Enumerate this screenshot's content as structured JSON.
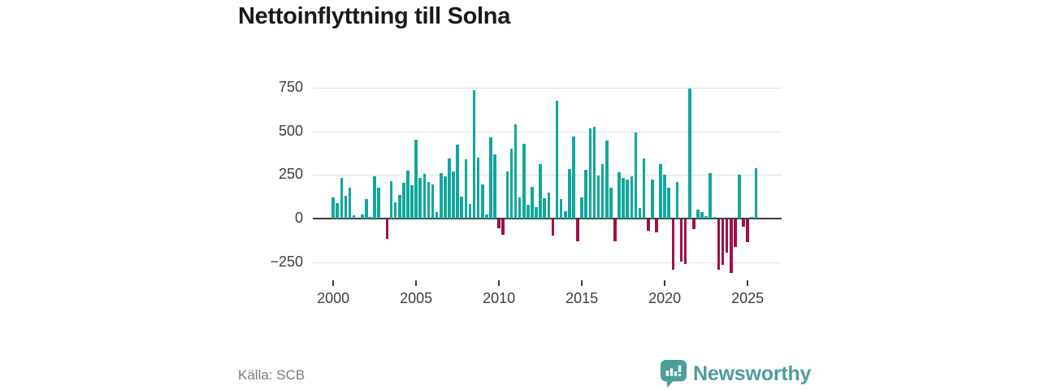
{
  "header": {
    "title": "Nettoinflyttning till Solna"
  },
  "footer": {
    "source": "Källa: SCB",
    "brand": "Newsworthy"
  },
  "colors": {
    "positive_bar": "#12a79d",
    "negative_bar": "#a1104b",
    "gridline": "#e0e0e0",
    "zero_axis": "#3b3b3b",
    "tick_text": "#3e3e3e",
    "title_text": "#1a1a1a",
    "source_text": "#7b7b84",
    "brand_teal": "#4b9e98"
  },
  "chart_data": {
    "type": "bar",
    "title": "Nettoinflyttning till Solna",
    "xlabel": "",
    "ylabel": "",
    "x_unit": "quarter",
    "start": "2000-Q1",
    "end": "2025-Q3",
    "grid": true,
    "legend": false,
    "ylim": [
      -330,
      800
    ],
    "y_ticks": [
      750,
      500,
      250,
      0,
      -250
    ],
    "y_tick_labels": [
      "750",
      "500",
      "250",
      "0",
      "−250"
    ],
    "x_tick_years": [
      2000,
      2005,
      2010,
      2015,
      2020,
      2025
    ],
    "x_tick_labels": [
      "2000",
      "2005",
      "2010",
      "2015",
      "2020",
      "2025"
    ],
    "series": [
      {
        "year": 2000,
        "q": [
          120,
          90,
          235,
          130
        ]
      },
      {
        "year": 2001,
        "q": [
          175,
          20,
          0,
          25
        ]
      },
      {
        "year": 2002,
        "q": [
          110,
          10,
          240,
          175
        ]
      },
      {
        "year": 2003,
        "q": [
          0,
          -110,
          215,
          95
        ]
      },
      {
        "year": 2004,
        "q": [
          135,
          205,
          275,
          190
        ]
      },
      {
        "year": 2005,
        "q": [
          450,
          235,
          255,
          210
        ]
      },
      {
        "year": 2006,
        "q": [
          195,
          35,
          260,
          240
        ]
      },
      {
        "year": 2007,
        "q": [
          345,
          270,
          425,
          125
        ]
      },
      {
        "year": 2008,
        "q": [
          340,
          85,
          735,
          350
        ]
      },
      {
        "year": 2009,
        "q": [
          195,
          25,
          465,
          370
        ]
      },
      {
        "year": 2010,
        "q": [
          -50,
          -90,
          270,
          400
        ]
      },
      {
        "year": 2011,
        "q": [
          540,
          120,
          430,
          80
        ]
      },
      {
        "year": 2012,
        "q": [
          180,
          65,
          310,
          115
        ]
      },
      {
        "year": 2013,
        "q": [
          150,
          -95,
          675,
          110
        ]
      },
      {
        "year": 2014,
        "q": [
          40,
          285,
          470,
          -125
        ]
      },
      {
        "year": 2015,
        "q": [
          120,
          280,
          515,
          525
        ]
      },
      {
        "year": 2016,
        "q": [
          245,
          310,
          445,
          175
        ]
      },
      {
        "year": 2017,
        "q": [
          -125,
          265,
          235,
          225
        ]
      },
      {
        "year": 2018,
        "q": [
          240,
          495,
          60,
          345
        ]
      },
      {
        "year": 2019,
        "q": [
          -65,
          225,
          -75,
          310
        ]
      },
      {
        "year": 2020,
        "q": [
          250,
          175,
          -290,
          210
        ]
      },
      {
        "year": 2021,
        "q": [
          -240,
          -255,
          745,
          -55
        ]
      },
      {
        "year": 2022,
        "q": [
          50,
          35,
          15,
          260
        ]
      },
      {
        "year": 2023,
        "q": [
          10,
          -290,
          -260,
          -190
        ]
      },
      {
        "year": 2024,
        "q": [
          -305,
          -160,
          250,
          -40
        ]
      },
      {
        "year": 2025,
        "q": [
          -130,
          10,
          290
        ]
      }
    ]
  }
}
